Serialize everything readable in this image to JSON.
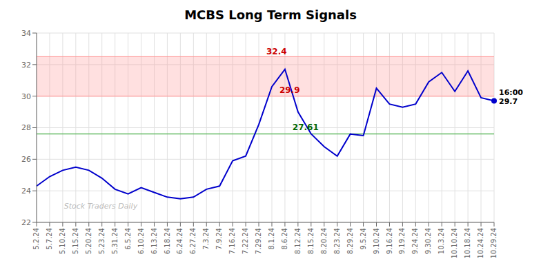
{
  "chart_data": {
    "type": "line",
    "title": "MCBS Long Term Signals",
    "categories": [
      "5.2.24",
      "5.7.24",
      "5.10.24",
      "5.15.24",
      "5.20.24",
      "5.23.24",
      "5.31.24",
      "6.5.24",
      "6.10.24",
      "6.13.24",
      "6.18.24",
      "6.24.24",
      "6.27.24",
      "7.3.24",
      "7.9.24",
      "7.16.24",
      "7.22.24",
      "7.29.24",
      "8.1.24",
      "8.6.24",
      "8.12.24",
      "8.15.24",
      "8.20.24",
      "8.23.24",
      "8.29.24",
      "9.5.24",
      "9.10.24",
      "9.16.24",
      "9.19.24",
      "9.24.24",
      "9.30.24",
      "10.3.24",
      "10.10.24",
      "10.18.24",
      "10.24.24",
      "10.29.24"
    ],
    "values": [
      24.3,
      24.9,
      25.3,
      25.5,
      25.3,
      24.8,
      24.1,
      23.8,
      24.2,
      23.9,
      23.6,
      23.5,
      23.6,
      24.1,
      24.3,
      25.9,
      26.2,
      28.2,
      30.6,
      31.7,
      29.0,
      27.61,
      26.8,
      26.2,
      27.6,
      27.5,
      30.5,
      29.5,
      29.3,
      29.5,
      30.9,
      31.5,
      30.3,
      31.6,
      29.9,
      29.7
    ],
    "color": "#0000cc",
    "ylim": [
      22,
      34
    ],
    "yticks": [
      22,
      24,
      26,
      28,
      30,
      32,
      34
    ],
    "grid": true,
    "bands": [
      {
        "from": 30.0,
        "to": 32.5,
        "color": "#ff9999"
      }
    ],
    "hlines": [
      {
        "y": 27.61,
        "color": "#66bb66"
      }
    ],
    "annotations": [
      {
        "text": "32.4",
        "x": "8.1.24",
        "y": 32.55,
        "color": "#cc0000"
      },
      {
        "text": "29.9",
        "x": "8.6.24",
        "y": 30.1,
        "color": "#cc0000"
      },
      {
        "text": "27.61",
        "x": "8.12.24",
        "y": 27.75,
        "color": "#006600"
      },
      {
        "text": "16:00",
        "x": "10.29.24",
        "y": 30.0,
        "color": "#000000"
      },
      {
        "text": "29.7",
        "x": "10.29.24",
        "y": 29.4,
        "color": "#000000"
      }
    ],
    "watermark": {
      "text": "Stock Traders Daily",
      "color": "#bbbbbb"
    }
  }
}
